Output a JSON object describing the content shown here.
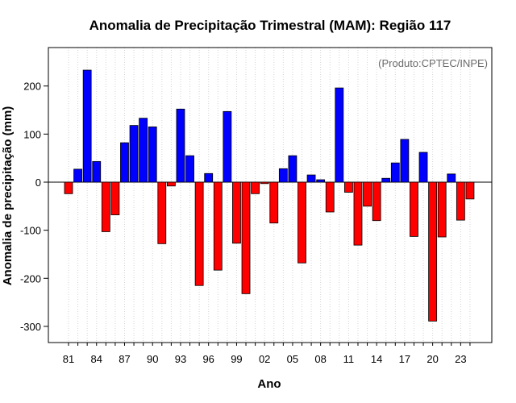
{
  "chart_data": {
    "type": "bar",
    "title": "Anomalia de Precipitação Trimestral (MAM): Região 117",
    "xlabel": "Ano",
    "ylabel": "Anomalia de precipitação (mm)",
    "credit": "(Produto:CPTEC/INPE)",
    "ylim": [
      -340,
      280
    ],
    "yticks": [
      -300,
      -200,
      -100,
      0,
      100,
      200
    ],
    "grid": "vertical-dotted",
    "colors": {
      "positive": "#0000ff",
      "negative": "#ff0000",
      "border": "#000000",
      "grid": "#d3d3d3"
    },
    "xtick_labels": [
      {
        "index": 0,
        "label": "81"
      },
      {
        "index": 3,
        "label": "84"
      },
      {
        "index": 6,
        "label": "87"
      },
      {
        "index": 9,
        "label": "90"
      },
      {
        "index": 12,
        "label": "93"
      },
      {
        "index": 15,
        "label": "96"
      },
      {
        "index": 18,
        "label": "99"
      },
      {
        "index": 21,
        "label": "02"
      },
      {
        "index": 24,
        "label": "05"
      },
      {
        "index": 27,
        "label": "08"
      },
      {
        "index": 30,
        "label": "11"
      },
      {
        "index": 33,
        "label": "14"
      },
      {
        "index": 36,
        "label": "17"
      },
      {
        "index": 39,
        "label": "20"
      },
      {
        "index": 42,
        "label": "23"
      }
    ],
    "categories": [
      "1981",
      "1982",
      "1983",
      "1984",
      "1985",
      "1986",
      "1987",
      "1988",
      "1989",
      "1990",
      "1991",
      "1992",
      "1993",
      "1994",
      "1995",
      "1996",
      "1997",
      "1998",
      "1999",
      "2000",
      "2001",
      "2002",
      "2003",
      "2004",
      "2005",
      "2006",
      "2007",
      "2008",
      "2009",
      "2010",
      "2011",
      "2012",
      "2013",
      "2014",
      "2015",
      "2016",
      "2017",
      "2018",
      "2019",
      "2020",
      "2021",
      "2022",
      "2023",
      "2024"
    ],
    "values": [
      -24,
      27,
      233,
      43,
      -103,
      -68,
      82,
      118,
      133,
      115,
      -128,
      -8,
      152,
      55,
      -215,
      18,
      -183,
      147,
      -127,
      -232,
      -24,
      -3,
      -85,
      28,
      55,
      -168,
      15,
      5,
      -62,
      196,
      -21,
      -131,
      -50,
      -80,
      8,
      40,
      89,
      -113,
      62,
      -289,
      -114,
      17,
      -79,
      -35
    ]
  }
}
